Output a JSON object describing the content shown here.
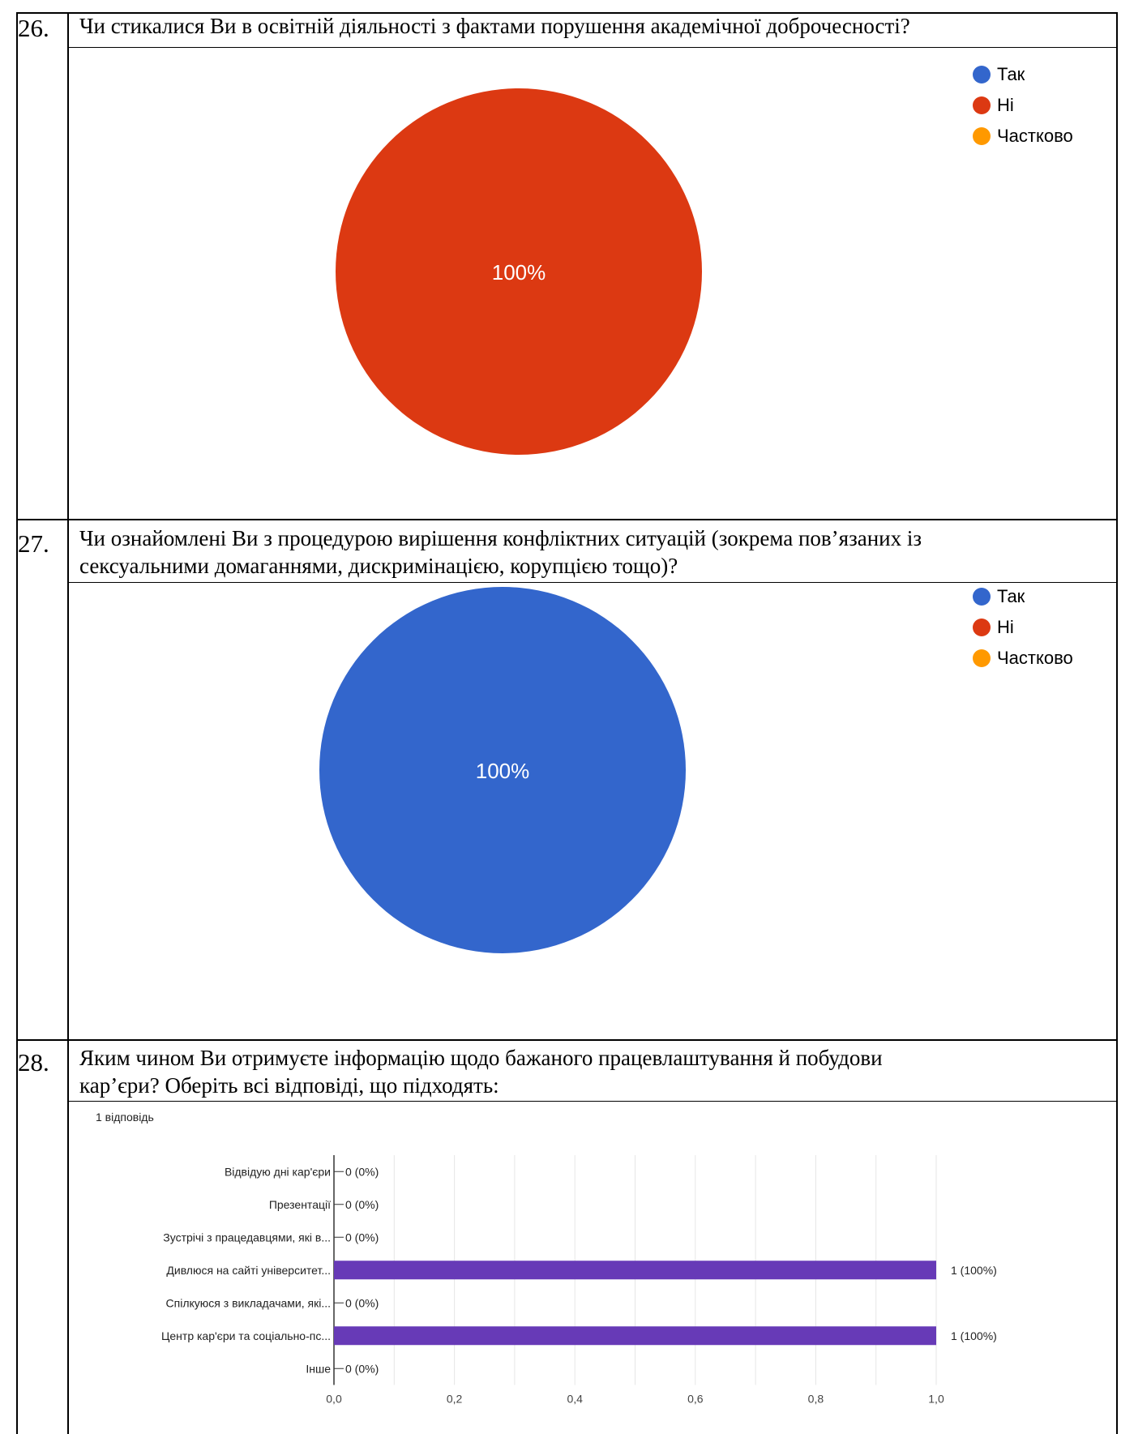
{
  "questions": [
    {
      "number": "26.",
      "text": "Чи стикалися Ви  в освітній діяльності з фактами порушення академічної доброчесності?",
      "chart_data": {
        "type": "pie",
        "legend": [
          "Так",
          "Ні",
          "Частково"
        ],
        "legend_colors": [
          "#3366cc",
          "#dc3912",
          "#ff9900"
        ],
        "values": [
          0,
          100,
          0
        ],
        "slice_label": "100%",
        "legend_position": "right"
      }
    },
    {
      "number": "27.",
      "text_lines": [
        "Чи ознайомлені Ви з процедурою вирішення конфліктних ситуацій (зокрема пов’язаних із",
        "сексуальними домаганнями, дискримінацією, корупцією тощо)?"
      ],
      "chart_data": {
        "type": "pie",
        "legend": [
          "Так",
          "Ні",
          "Частково"
        ],
        "legend_colors": [
          "#3366cc",
          "#dc3912",
          "#ff9900"
        ],
        "values": [
          100,
          0,
          0
        ],
        "slice_label": "100%",
        "legend_position": "right"
      }
    },
    {
      "number": "28.",
      "text_lines": [
        "Яким чином Ви отримуєте інформацію щодо бажаного працевлаштування й побудови",
        "кар’єри? Оберіть всі відповіді, що підходять:"
      ],
      "responses_label": "1 відповідь",
      "chart_data": {
        "type": "bar",
        "orientation": "horizontal",
        "categories": [
          "Відвідую дні кар'єри",
          "Презентації",
          "Зустрічі з працедавцями, які в...",
          "Дивлюся на сайті університет...",
          "Спілкуюся з викладачами, які...",
          "Центр кар'єри та соціально-пс...",
          "Інше"
        ],
        "values": [
          0,
          0,
          0,
          1,
          0,
          1,
          0
        ],
        "value_labels": [
          "0 (0%)",
          "0 (0%)",
          "0 (0%)",
          "1 (100%)",
          "0 (0%)",
          "1 (100%)",
          "0 (0%)"
        ],
        "x_ticks": [
          "0,0",
          "0,2",
          "0,4",
          "0,6",
          "0,8",
          "1,0"
        ],
        "xlim": [
          0,
          1
        ],
        "bar_color": "#673ab7",
        "grid": true
      }
    }
  ]
}
